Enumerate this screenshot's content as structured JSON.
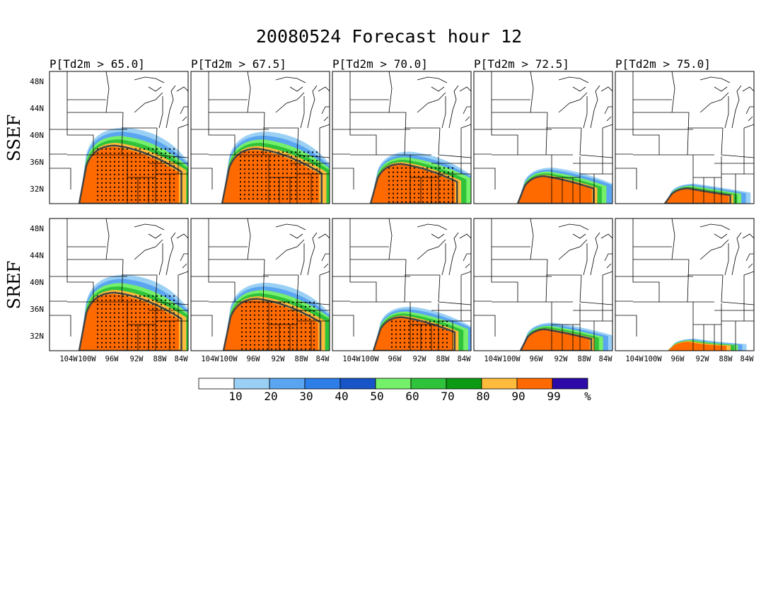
{
  "title": "20080524 Forecast hour 12",
  "thresholds": [
    "P[Td2m > 65.0]",
    "P[Td2m > 67.5]",
    "P[Td2m > 70.0]",
    "P[Td2m > 72.5]",
    "P[Td2m > 75.0]"
  ],
  "rows": [
    {
      "label": "SSEF",
      "levels": [
        0.95,
        0.9,
        0.65,
        0.45,
        0.25
      ]
    },
    {
      "label": "SREF",
      "levels": [
        0.95,
        0.85,
        0.55,
        0.35,
        0.15
      ]
    }
  ],
  "lat_labels": [
    "48N",
    "44N",
    "40N",
    "36N",
    "32N"
  ],
  "lon_labels": [
    "104W",
    "100W",
    "96W",
    "92W",
    "88W",
    "84W"
  ],
  "colorbar": {
    "colors": [
      "#ffffff",
      "#9bd0f5",
      "#5aa5f0",
      "#2e7ee8",
      "#1654c8",
      "#74f06a",
      "#2fc23b",
      "#0b9a12",
      "#ffbc3c",
      "#ff6a00",
      "#2b0aa8"
    ],
    "labels": [
      "10",
      "20",
      "30",
      "40",
      "50",
      "60",
      "70",
      "80",
      "90",
      "99",
      "%"
    ]
  }
}
